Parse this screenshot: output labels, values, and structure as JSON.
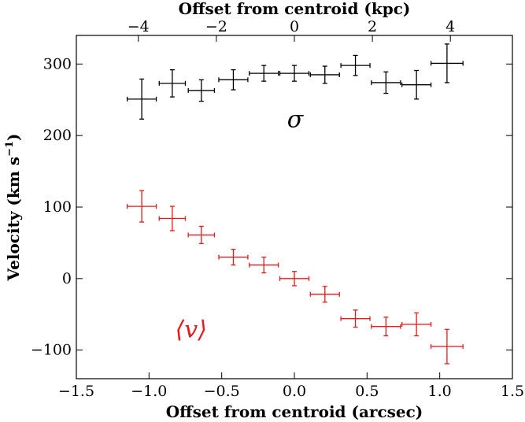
{
  "chart_data": {
    "type": "scatter",
    "title": "",
    "xlabel": "Offset from centroid (arcsec)",
    "x2label": "Offset from centroid (kpc)",
    "ylabel": "Velocity (km s",
    "ylabel_sup": "−1",
    "ylabel_end": ")",
    "xlim": [
      -1.5,
      1.5
    ],
    "ylim": [
      -140,
      340
    ],
    "x2lim": [
      -5.59,
      5.59
    ],
    "xticks": [
      -1.5,
      -1.0,
      -0.5,
      0.0,
      0.5,
      1.0,
      1.5
    ],
    "xtick_labels": [
      "−1.5",
      "−1.0",
      "−0.5",
      "0.0",
      "0.5",
      "1.0",
      "1.5"
    ],
    "x2ticks": [
      -4,
      -2,
      0,
      2,
      4
    ],
    "x2tick_labels": [
      "−4",
      "−2",
      "0",
      "2",
      "4"
    ],
    "yticks": [
      -100,
      0,
      100,
      200,
      300
    ],
    "ytick_labels": [
      "−100",
      "0",
      "100",
      "200",
      "300"
    ],
    "grid": false,
    "series": [
      {
        "label_text": "σ",
        "color": "#000000",
        "points": [
          {
            "x": -1.05,
            "y": 251,
            "xerr": 0.1,
            "yerr": 28
          },
          {
            "x": -0.84,
            "y": 273,
            "xerr": 0.09,
            "yerr": 19
          },
          {
            "x": -0.64,
            "y": 263,
            "xerr": 0.09,
            "yerr": 15
          },
          {
            "x": -0.42,
            "y": 278,
            "xerr": 0.1,
            "yerr": 14
          },
          {
            "x": -0.21,
            "y": 287,
            "xerr": 0.1,
            "yerr": 11
          },
          {
            "x": 0.0,
            "y": 287,
            "xerr": 0.1,
            "yerr": 11
          },
          {
            "x": 0.21,
            "y": 285,
            "xerr": 0.1,
            "yerr": 12
          },
          {
            "x": 0.42,
            "y": 298,
            "xerr": 0.1,
            "yerr": 14
          },
          {
            "x": 0.63,
            "y": 274,
            "xerr": 0.1,
            "yerr": 15
          },
          {
            "x": 0.84,
            "y": 271,
            "xerr": 0.1,
            "yerr": 20
          },
          {
            "x": 1.05,
            "y": 301,
            "xerr": 0.11,
            "yerr": 27
          }
        ]
      },
      {
        "label_text": "⟨v⟩",
        "color": "#e41a1c",
        "points": [
          {
            "x": -1.05,
            "y": 101,
            "xerr": 0.1,
            "yerr": 22
          },
          {
            "x": -0.84,
            "y": 84,
            "xerr": 0.09,
            "yerr": 17
          },
          {
            "x": -0.64,
            "y": 61,
            "xerr": 0.09,
            "yerr": 12
          },
          {
            "x": -0.42,
            "y": 30,
            "xerr": 0.1,
            "yerr": 11
          },
          {
            "x": -0.21,
            "y": 19,
            "xerr": 0.1,
            "yerr": 11
          },
          {
            "x": 0.0,
            "y": 0,
            "xerr": 0.1,
            "yerr": 10
          },
          {
            "x": 0.21,
            "y": -22,
            "xerr": 0.1,
            "yerr": 11
          },
          {
            "x": 0.42,
            "y": -56,
            "xerr": 0.1,
            "yerr": 12
          },
          {
            "x": 0.63,
            "y": -67,
            "xerr": 0.1,
            "yerr": 13
          },
          {
            "x": 0.84,
            "y": -64,
            "xerr": 0.1,
            "yerr": 16
          },
          {
            "x": 1.05,
            "y": -95,
            "xerr": 0.11,
            "yerr": 24
          }
        ]
      }
    ]
  }
}
